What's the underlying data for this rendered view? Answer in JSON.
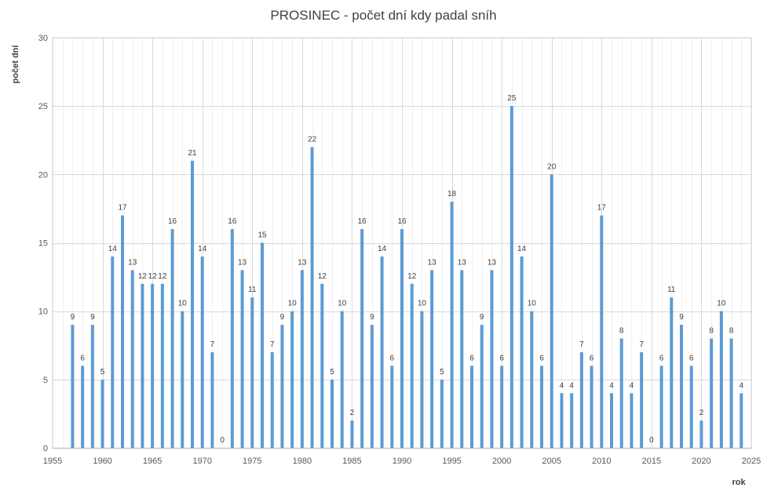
{
  "chart_data": {
    "type": "bar",
    "title": "PROSINEC - počet dní kdy padal sníh",
    "xlabel": "rok",
    "ylabel": "počet dní",
    "xlim": [
      1955,
      2025
    ],
    "ylim": [
      0,
      30
    ],
    "x_ticks": [
      1955,
      1960,
      1965,
      1970,
      1975,
      1980,
      1985,
      1990,
      1995,
      2000,
      2005,
      2010,
      2015,
      2020,
      2025
    ],
    "y_ticks": [
      0,
      5,
      10,
      15,
      20,
      25,
      30
    ],
    "grid": true,
    "bar_color": "#5b9bd5",
    "x": [
      1957,
      1958,
      1959,
      1960,
      1961,
      1962,
      1963,
      1964,
      1965,
      1966,
      1967,
      1968,
      1969,
      1970,
      1971,
      1972,
      1973,
      1974,
      1975,
      1976,
      1977,
      1978,
      1979,
      1980,
      1981,
      1982,
      1983,
      1984,
      1985,
      1986,
      1987,
      1988,
      1989,
      1990,
      1991,
      1992,
      1993,
      1994,
      1995,
      1996,
      1997,
      1998,
      1999,
      2000,
      2001,
      2002,
      2003,
      2004,
      2005,
      2006,
      2007,
      2008,
      2009,
      2010,
      2011,
      2012,
      2013,
      2014,
      2015,
      2016,
      2017,
      2018,
      2019,
      2020,
      2021,
      2022,
      2023,
      2024
    ],
    "values": [
      9,
      6,
      9,
      5,
      14,
      17,
      13,
      12,
      12,
      12,
      16,
      10,
      21,
      14,
      7,
      0,
      16,
      13,
      11,
      15,
      7,
      9,
      10,
      13,
      22,
      12,
      5,
      10,
      2,
      16,
      9,
      14,
      6,
      16,
      12,
      10,
      13,
      5,
      18,
      13,
      6,
      9,
      13,
      6,
      25,
      14,
      10,
      6,
      20,
      4,
      4,
      7,
      6,
      17,
      4,
      8,
      4,
      7,
      0,
      6,
      11,
      9,
      6,
      2,
      8,
      10,
      8,
      4
    ]
  }
}
